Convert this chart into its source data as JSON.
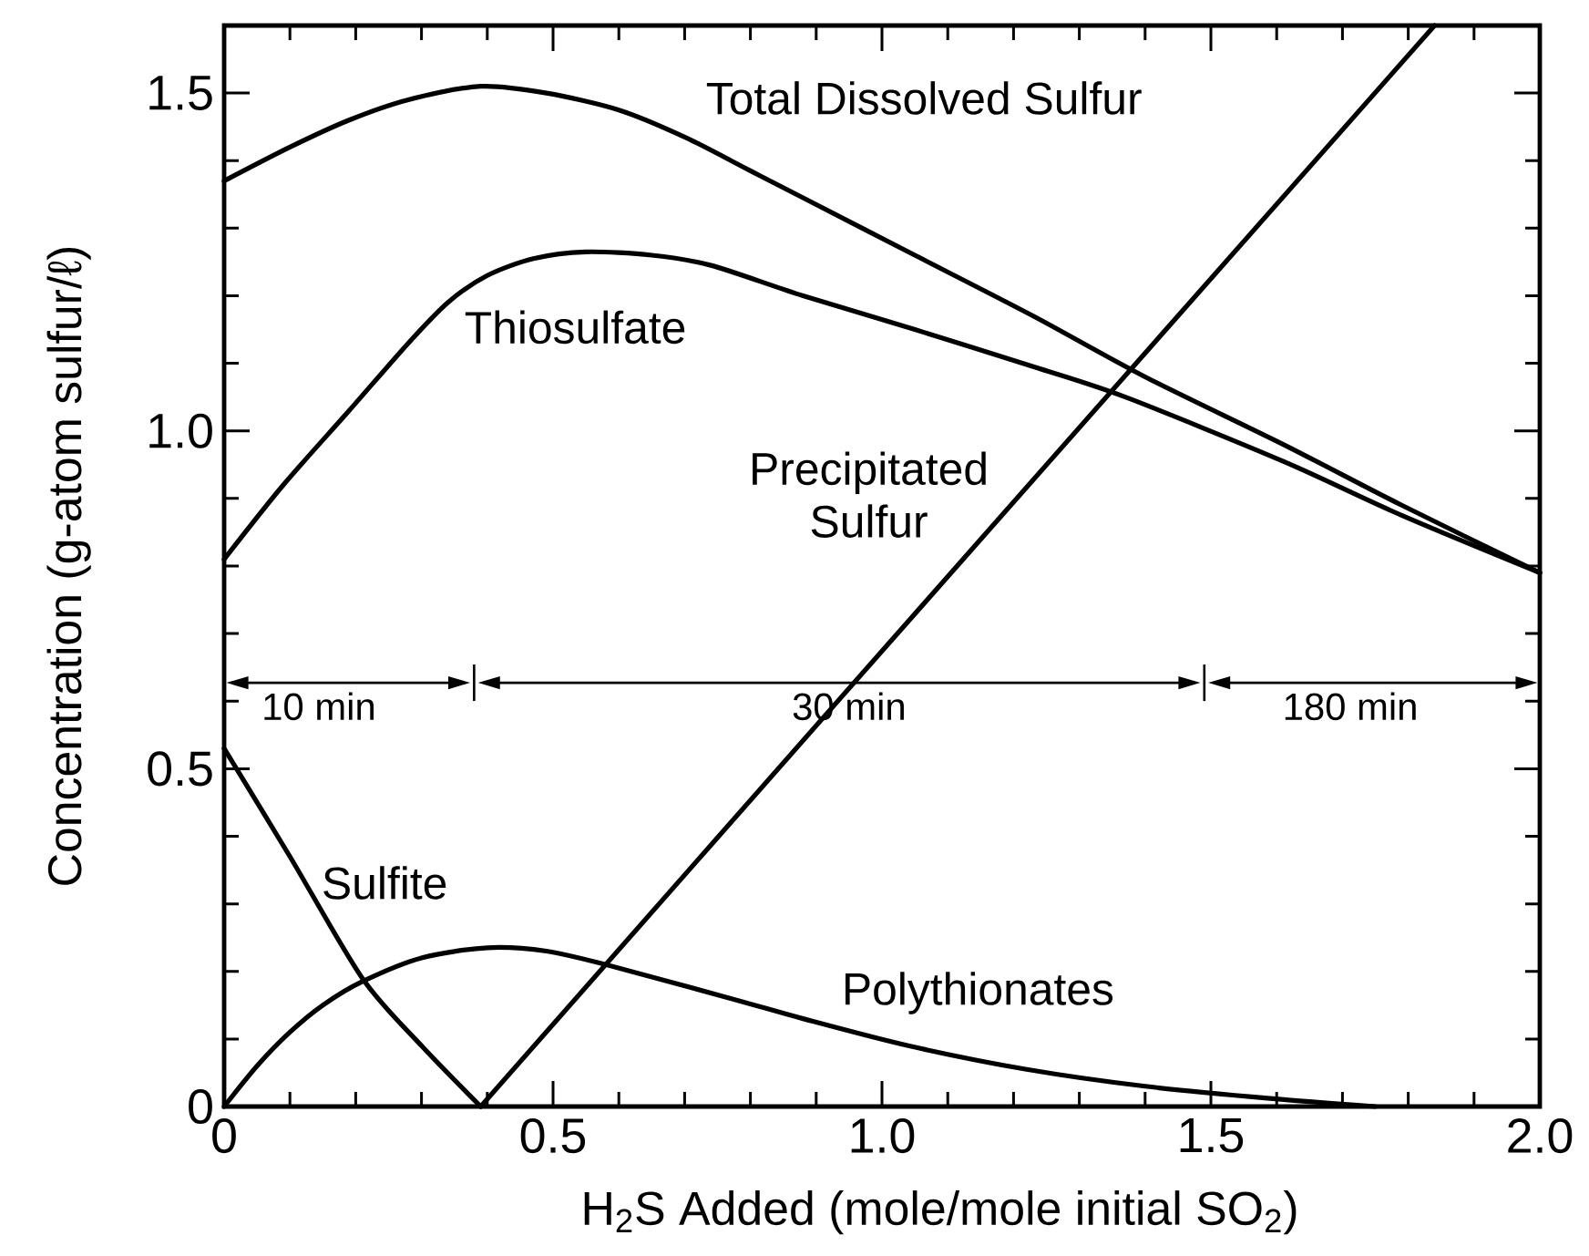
{
  "chart_data": {
    "type": "line",
    "xlabel": "H$_{2}$S Added (mole/mole initial SO$_{2}$)",
    "ylabel": "Concentration (g-atom sulfur/ℓ)",
    "xlim": [
      0,
      2
    ],
    "ylim": [
      0,
      1.6
    ],
    "xticks": [
      0,
      {
        "value": 0.1,
        "label": null
      },
      {
        "value": 0.2,
        "label": null
      },
      {
        "value": 0.3,
        "label": null
      },
      {
        "value": 0.4,
        "label": null
      },
      0.5,
      {
        "value": 0.6,
        "label": null
      },
      {
        "value": 0.7,
        "label": null
      },
      {
        "value": 0.8,
        "label": null
      },
      {
        "value": 0.9,
        "label": null
      },
      {
        "value": 1,
        "label": "1.0"
      },
      {
        "value": 1.1,
        "label": null
      },
      {
        "value": 1.2,
        "label": null
      },
      {
        "value": 1.3,
        "label": null
      },
      {
        "value": 1.4,
        "label": null
      },
      1.5,
      {
        "value": 1.6,
        "label": null
      },
      {
        "value": 1.7,
        "label": null
      },
      {
        "value": 1.8,
        "label": null
      },
      {
        "value": 1.9,
        "label": null
      },
      {
        "value": 2,
        "label": "2.0"
      }
    ],
    "yticks": [
      0,
      {
        "value": 0.1,
        "label": null
      },
      {
        "value": 0.2,
        "label": null
      },
      {
        "value": 0.3,
        "label": null
      },
      {
        "value": 0.4,
        "label": null
      },
      0.5,
      {
        "value": 0.6,
        "label": null
      },
      {
        "value": 0.7,
        "label": null
      },
      {
        "value": 0.8,
        "label": null
      },
      {
        "value": 0.9,
        "label": null
      },
      {
        "value": 1,
        "label": "1.0"
      },
      {
        "value": 1.1,
        "label": null
      },
      {
        "value": 1.2,
        "label": null
      },
      {
        "value": 1.3,
        "label": null
      },
      {
        "value": 1.4,
        "label": null
      },
      1.5
    ],
    "series": [
      {
        "name": "Total Dissolved Sulfur",
        "color": "#000000",
        "x": [
          0,
          0.1,
          0.19,
          0.28,
          0.39,
          0.49,
          0.6,
          0.7,
          0.8,
          0.88,
          1.05,
          1.23,
          1.4,
          1.61,
          1.79,
          2.0
        ],
        "values": [
          1.37,
          1.42,
          1.46,
          1.49,
          1.51,
          1.5,
          1.475,
          1.435,
          1.385,
          1.345,
          1.26,
          1.17,
          1.08,
          0.98,
          0.89,
          0.79
        ]
      },
      {
        "name": "Thiosulfate",
        "color": "#000000",
        "x": [
          0,
          0.09,
          0.19,
          0.28,
          0.34,
          0.4,
          0.47,
          0.55,
          0.65,
          0.74,
          0.88,
          1.05,
          1.23,
          1.37,
          1.61,
          1.79,
          2.0
        ],
        "values": [
          0.81,
          0.92,
          1.03,
          1.13,
          1.19,
          1.23,
          1.255,
          1.265,
          1.26,
          1.245,
          1.2,
          1.15,
          1.095,
          1.05,
          0.955,
          0.875,
          0.79
        ]
      },
      {
        "name": "Precipitated Sulfur",
        "color": "#000000",
        "x": [
          0.39,
          0.96,
          1.84
        ],
        "values": [
          0,
          0.63,
          1.6
        ]
      },
      {
        "name": "Sulfite",
        "color": "#000000",
        "x": [
          0,
          0.1,
          0.21,
          0.3,
          0.39
        ],
        "values": [
          0.53,
          0.37,
          0.19,
          0.09,
          0
        ]
      },
      {
        "name": "Polythionates",
        "color": "#000000",
        "x": [
          0,
          0.05,
          0.1,
          0.15,
          0.21,
          0.3,
          0.4,
          0.49,
          0.58,
          0.77,
          0.88,
          1.04,
          1.22,
          1.4,
          1.59,
          1.75
        ],
        "values": [
          0,
          0.06,
          0.11,
          0.15,
          0.185,
          0.22,
          0.235,
          0.23,
          0.21,
          0.16,
          0.13,
          0.09,
          0.055,
          0.03,
          0.012,
          0
        ]
      }
    ],
    "annotations": [
      "10 min",
      "30 min",
      "180 min"
    ]
  }
}
